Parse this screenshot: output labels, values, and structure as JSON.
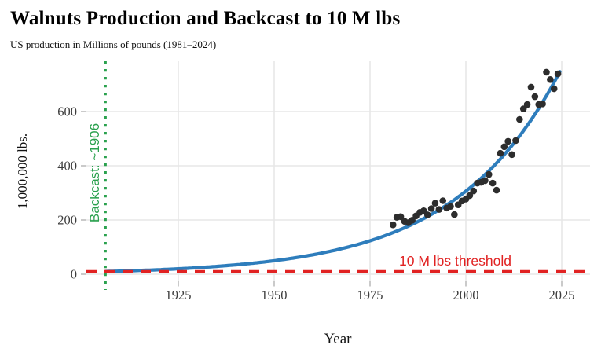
{
  "header": {
    "title": "Walnuts Production and Backcast to 10 M lbs",
    "subtitle": "US production in Millions of pounds (1981–2024)"
  },
  "axes": {
    "x_label": "Year",
    "y_label": "1,000,000 lbs.",
    "x_ticks": [
      1925,
      1950,
      1975,
      2000,
      2025
    ],
    "y_ticks": [
      0,
      200,
      400,
      600
    ]
  },
  "annotations": {
    "backcast": {
      "label": "Backcast: ~1906",
      "year": 1906,
      "color": "#2aa14e"
    },
    "threshold": {
      "label": "10 M lbs threshold",
      "value": 10,
      "color": "#e12222"
    }
  },
  "colors": {
    "curve": "#2e7dbc",
    "points": "#2d2d2d",
    "grid": "#e7e7e7",
    "tick_mark": "#b3b3b3",
    "axis_text": "#3d3d3d"
  },
  "chart_data": {
    "type": "scatter",
    "title": "Walnuts Production and Backcast to 10 M lbs",
    "xlabel": "Year",
    "ylabel": "1,000,000 lbs.",
    "xlim": [
      1901,
      2032
    ],
    "ylim": [
      -25,
      785
    ],
    "grid": true,
    "x": [
      1981,
      1982,
      1983,
      1984,
      1985,
      1986,
      1987,
      1988,
      1989,
      1990,
      1991,
      1992,
      1993,
      1994,
      1995,
      1996,
      1997,
      1998,
      1999,
      2000,
      2001,
      2002,
      2003,
      2004,
      2005,
      2006,
      2007,
      2008,
      2009,
      2010,
      2011,
      2012,
      2013,
      2014,
      2015,
      2016,
      2017,
      2018,
      2019,
      2020,
      2021,
      2022,
      2023,
      2024
    ],
    "values": [
      182,
      210,
      212,
      195,
      190,
      199,
      215,
      228,
      234,
      219,
      242,
      262,
      239,
      271,
      244,
      250,
      220,
      256,
      270,
      277,
      290,
      307,
      336,
      339,
      345,
      368,
      336,
      310,
      446,
      470,
      490,
      441,
      493,
      571,
      610,
      626,
      690,
      655,
      626,
      628,
      745,
      718,
      684,
      739
    ],
    "fit_curve": {
      "model": "exponential",
      "start_year": 1906,
      "start_value": 10,
      "end_year": 2024.6,
      "end_value": 750
    },
    "threshold_value": 10,
    "backcast_year": 1906
  }
}
